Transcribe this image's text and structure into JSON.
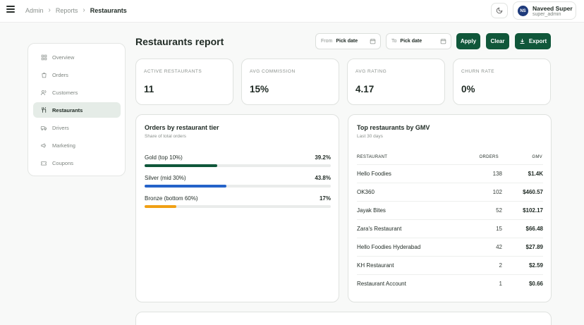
{
  "breadcrumb": {
    "items": [
      "Admin",
      "Reports",
      "Restaurants"
    ]
  },
  "user": {
    "initials": "NS",
    "name": "Naveed Super",
    "role": "super_admin"
  },
  "sidebar": {
    "items": [
      {
        "label": "Overview",
        "icon": "grid-icon",
        "active": false
      },
      {
        "label": "Orders",
        "icon": "bag-icon",
        "active": false
      },
      {
        "label": "Customers",
        "icon": "users-icon",
        "active": false
      },
      {
        "label": "Restaurants",
        "icon": "utensils-icon",
        "active": true
      },
      {
        "label": "Drivers",
        "icon": "truck-icon",
        "active": false
      },
      {
        "label": "Marketing",
        "icon": "megaphone-icon",
        "active": false
      },
      {
        "label": "Coupons",
        "icon": "ticket-icon",
        "active": false
      }
    ]
  },
  "header": {
    "title": "Restaurants report",
    "from_label": "From",
    "from_placeholder": "Pick date",
    "to_label": "To",
    "to_placeholder": "Pick date",
    "apply_label": "Apply",
    "clear_label": "Clear",
    "export_label": "Export"
  },
  "stats": [
    {
      "label": "ACTIVE RESTAURANTS",
      "value": "11"
    },
    {
      "label": "AVG COMMISSION",
      "value": "15%"
    },
    {
      "label": "AVG RATING",
      "value": "4.17"
    },
    {
      "label": "CHURN RATE",
      "value": "0%"
    }
  ],
  "tiers": {
    "title": "Orders by restaurant tier",
    "subtitle": "Share of total orders",
    "items": [
      {
        "name": "Gold (top 10%)",
        "pct": "39.2%",
        "fraction": 0.392,
        "color": "#10573a"
      },
      {
        "name": "Silver (mid 30%)",
        "pct": "43.8%",
        "fraction": 0.438,
        "color": "#2563c9"
      },
      {
        "name": "Bronze (bottom 60%)",
        "pct": "17%",
        "fraction": 0.17,
        "color": "#f0a014"
      }
    ]
  },
  "top": {
    "title": "Top restaurants by GMV",
    "subtitle": "Last 30 days",
    "columns": {
      "restaurant": "RESTAURANT",
      "orders": "ORDERS",
      "gmv": "GMV"
    },
    "rows": [
      {
        "name": "Hello Foodies",
        "orders": "138",
        "gmv": "$1.4K"
      },
      {
        "name": "OK360",
        "orders": "102",
        "gmv": "$460.57"
      },
      {
        "name": "Jayak Bites",
        "orders": "52",
        "gmv": "$102.17"
      },
      {
        "name": "Zara's Restaurant",
        "orders": "15",
        "gmv": "$66.48"
      },
      {
        "name": "Hello Foodies Hyderabad",
        "orders": "42",
        "gmv": "$27.89"
      },
      {
        "name": "KH Restaurant",
        "orders": "2",
        "gmv": "$2.59"
      },
      {
        "name": "Restaurant Account",
        "orders": "1",
        "gmv": "$0.66"
      }
    ]
  },
  "colors": {
    "accent": "#10573a",
    "active_nav_bg": "#e5ece7"
  }
}
